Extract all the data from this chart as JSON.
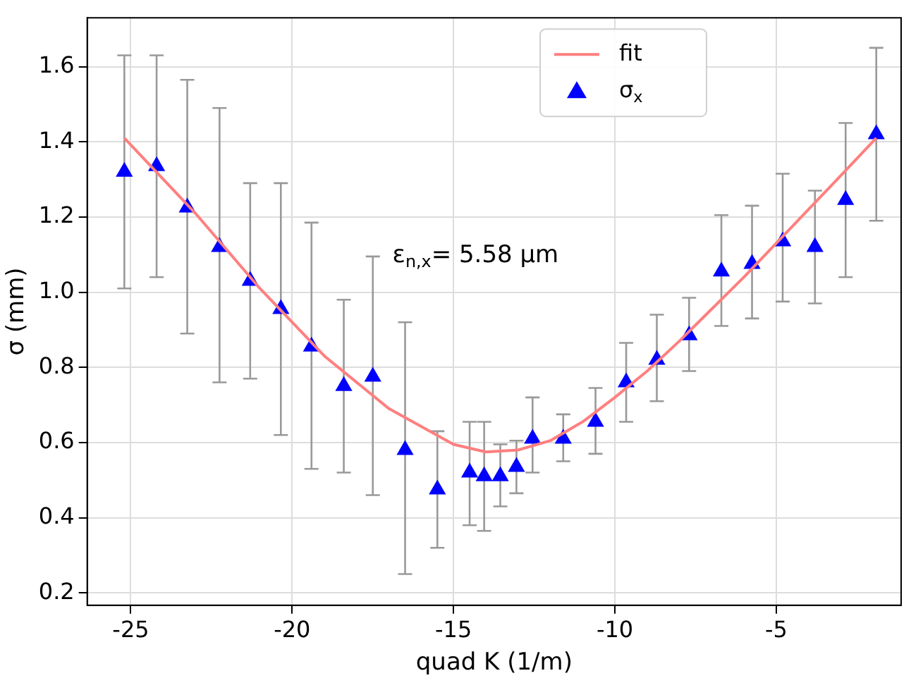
{
  "chart_data": {
    "type": "scatter",
    "xlabel": "quad K (1/m)",
    "ylabel": "σ (mm)",
    "xlim": [
      -26.35,
      -1.13
    ],
    "xticks": [
      -25,
      -20,
      -15,
      -10,
      -5
    ],
    "ylim": [
      0.167,
      1.73
    ],
    "yticks": [
      0.2,
      0.4,
      0.6,
      0.8,
      {
        "value": 1,
        "label": "1.0"
      },
      1.2,
      1.4,
      1.6
    ],
    "grid": true,
    "legend": "top right",
    "annotations": [
      "ε$_{n,x}$= 5.58 μm"
    ],
    "series": [
      {
        "name": "fit",
        "type": "line",
        "color": "#ff7f7f",
        "marker": "none",
        "line_style": "solid",
        "x": [
          -25.2,
          -23,
          -21,
          -19,
          -17,
          -15,
          -14,
          -13,
          -12,
          -11,
          -10,
          -9,
          -8,
          -7,
          -6,
          -5,
          -4,
          -3,
          -1.9
        ],
        "values": [
          1.41,
          1.21,
          1.01,
          0.83,
          0.69,
          0.595,
          0.575,
          0.58,
          0.605,
          0.655,
          0.72,
          0.79,
          0.87,
          0.955,
          1.04,
          1.13,
          1.22,
          1.31,
          1.41
        ]
      },
      {
        "name": "σ$_{x}$",
        "color": "#0000ff",
        "marker": "triangle",
        "x": [
          -25.2,
          -24.2,
          -23.25,
          -22.25,
          -21.3,
          -20.35,
          -19.4,
          -18.4,
          -17.5,
          -16.5,
          -15.5,
          -14.5,
          -14.05,
          -13.55,
          -13.05,
          -12.55,
          -11.6,
          -10.6,
          -9.65,
          -8.7,
          -7.7,
          -6.7,
          -5.75,
          -4.8,
          -3.8,
          -2.85,
          -1.9
        ],
        "values": [
          1.32,
          1.335,
          1.225,
          1.12,
          1.03,
          0.955,
          0.855,
          0.75,
          0.775,
          0.58,
          0.475,
          0.52,
          0.51,
          0.51,
          0.535,
          0.61,
          0.61,
          0.655,
          0.76,
          0.82,
          0.885,
          1.055,
          1.075,
          1.135,
          1.12,
          1.245,
          1.42
        ],
        "errors": [
          [
            1.01,
            1.63
          ],
          [
            1.04,
            1.63
          ],
          [
            0.89,
            1.565
          ],
          [
            0.76,
            1.49
          ],
          [
            0.77,
            1.29
          ],
          [
            0.62,
            1.29
          ],
          [
            0.53,
            1.185
          ],
          [
            0.52,
            0.98
          ],
          [
            0.46,
            1.095
          ],
          [
            0.25,
            0.92
          ],
          [
            0.32,
            0.63
          ],
          [
            0.38,
            0.655
          ],
          [
            0.365,
            0.655
          ],
          [
            0.43,
            0.595
          ],
          [
            0.465,
            0.605
          ],
          [
            0.52,
            0.72
          ],
          [
            0.55,
            0.675
          ],
          [
            0.57,
            0.745
          ],
          [
            0.655,
            0.865
          ],
          [
            0.71,
            0.94
          ],
          [
            0.79,
            0.985
          ],
          [
            0.91,
            1.205
          ],
          [
            0.93,
            1.23
          ],
          [
            0.975,
            1.315
          ],
          [
            0.97,
            1.27
          ],
          [
            1.04,
            1.45
          ],
          [
            1.19,
            1.65
          ]
        ]
      }
    ]
  }
}
